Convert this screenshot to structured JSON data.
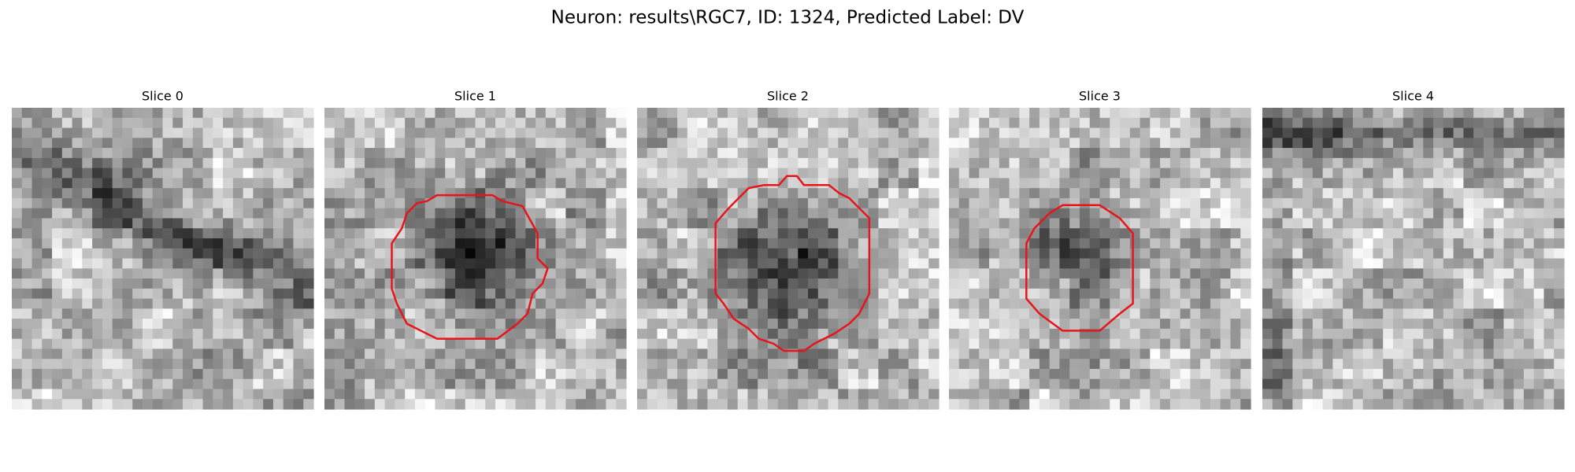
{
  "title": "Neuron: results\\RGC7, ID: 1324, Predicted Label: DV",
  "panels": [
    {
      "title": "Slice 0"
    },
    {
      "title": "Slice 1"
    },
    {
      "title": "Slice 2"
    },
    {
      "title": "Slice 3"
    },
    {
      "title": "Slice 4"
    }
  ]
}
